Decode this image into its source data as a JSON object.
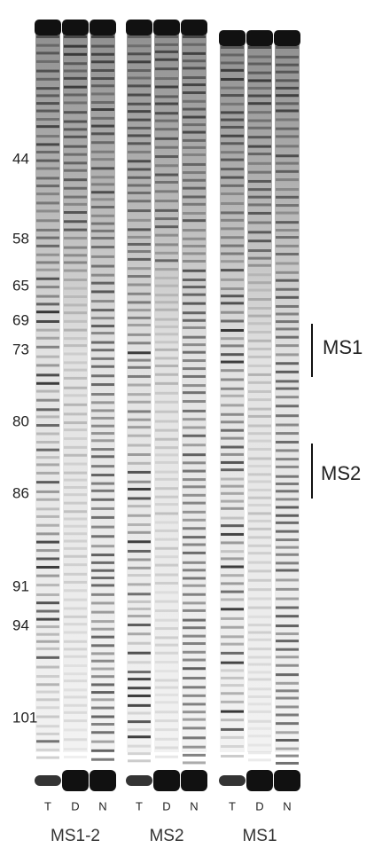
{
  "markers": [
    "44",
    "58",
    "65",
    "69",
    "73",
    "80",
    "86",
    "91",
    "94",
    "101"
  ],
  "lanes": [
    [
      "T",
      "D",
      "N"
    ],
    [
      "T",
      "D",
      "N"
    ],
    [
      "T",
      "D",
      "N"
    ]
  ],
  "groups": [
    "MS1-2",
    "MS2",
    "MS1"
  ],
  "regions": [
    "MS1",
    "MS2"
  ]
}
